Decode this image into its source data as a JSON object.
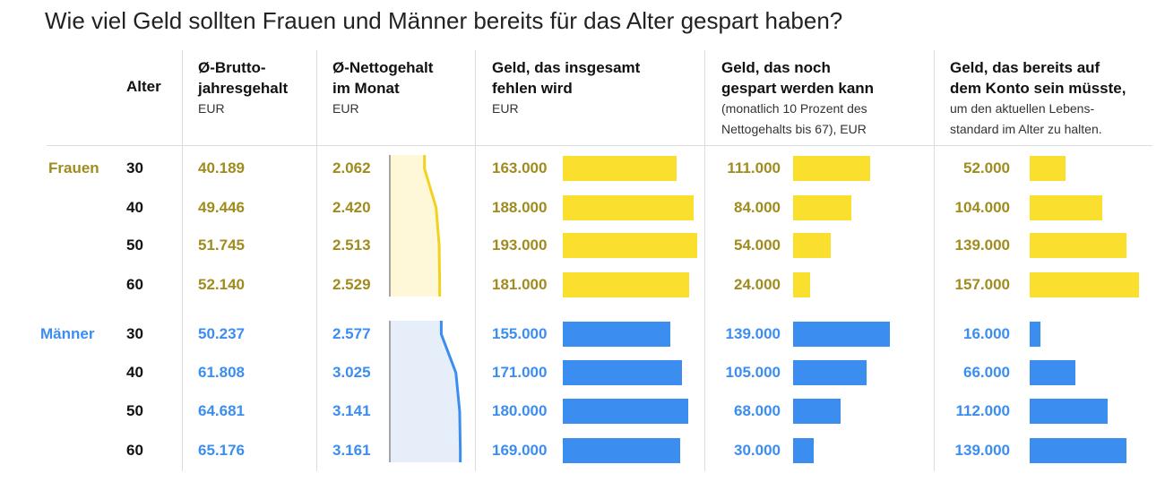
{
  "title": "Wie viel Geld sollten Frauen und Männer bereits für das Alter gespart haben?",
  "headers": {
    "alter": "Alter",
    "brutto_line1": "Ø-Brutto-",
    "brutto_line2": "jahresgehalt",
    "brutto_unit": "EUR",
    "netto_line1": "Ø-Nettogehalt",
    "netto_line2": "im Monat",
    "netto_unit": "EUR",
    "fehlen_line1": "Geld, das insgesamt",
    "fehlen_line2": "fehlen wird",
    "fehlen_unit": "EUR",
    "gespart_line1": "Geld, das noch",
    "gespart_line2": "gespart werden kann",
    "gespart_sub1": "(monatlich 10 Prozent des",
    "gespart_sub2": "Nettogehalts bis 67), EUR",
    "konto_line1": "Geld, das bereits auf",
    "konto_line2": "dem Konto sein müsste,",
    "konto_sub1": "um den aktuellen Lebens-",
    "konto_sub2": "standard im Alter zu halten."
  },
  "colors": {
    "frauen_text": "#a08c1e",
    "frauen_bar": "#fbdf2f",
    "frauen_area": "#fff8d8",
    "maenner_text": "#3b8ef0",
    "maenner_bar": "#3b8ef0",
    "maenner_area": "#e6eff9"
  },
  "chart_data": {
    "type": "table",
    "groups": [
      {
        "name": "Frauen",
        "rows": [
          {
            "alter": "30",
            "brutto": "40.189",
            "netto": "2.062",
            "fehlen": "163.000",
            "gespart": "111.000",
            "konto": "52.000"
          },
          {
            "alter": "40",
            "brutto": "49.446",
            "netto": "2.420",
            "fehlen": "188.000",
            "gespart": "84.000",
            "konto": "104.000"
          },
          {
            "alter": "50",
            "brutto": "51.745",
            "netto": "2.513",
            "fehlen": "193.000",
            "gespart": "54.000",
            "konto": "139.000"
          },
          {
            "alter": "60",
            "brutto": "52.140",
            "netto": "2.529",
            "fehlen": "181.000",
            "gespart": "24.000",
            "konto": "157.000"
          }
        ]
      },
      {
        "name": "Männer",
        "rows": [
          {
            "alter": "30",
            "brutto": "50.237",
            "netto": "2.577",
            "fehlen": "155.000",
            "gespart": "139.000",
            "konto": "16.000"
          },
          {
            "alter": "40",
            "brutto": "61.808",
            "netto": "3.025",
            "fehlen": "171.000",
            "gespart": "105.000",
            "konto": "66.000"
          },
          {
            "alter": "50",
            "brutto": "64.681",
            "netto": "3.141",
            "fehlen": "180.000",
            "gespart": "68.000",
            "konto": "112.000"
          },
          {
            "alter": "60",
            "brutto": "65.176",
            "netto": "3.161",
            "fehlen": "169.000",
            "gespart": "30.000",
            "konto": "139.000"
          }
        ]
      }
    ]
  }
}
